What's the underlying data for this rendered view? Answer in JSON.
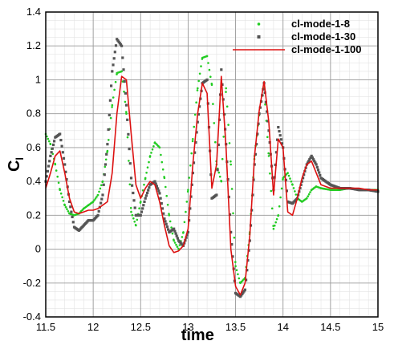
{
  "chart_data": {
    "type": "line",
    "xlabel": "time",
    "ylabel_main": "C",
    "ylabel_sub": "l",
    "xlim": [
      11.5,
      15
    ],
    "ylim": [
      -0.4,
      1.4
    ],
    "x_ticks": [
      "11.5",
      "12",
      "12.5",
      "13",
      "13.5",
      "14",
      "14.5",
      "15"
    ],
    "y_ticks": [
      "-0.4",
      "-0.2",
      "0",
      "0.2",
      "0.4",
      "0.6",
      "0.8",
      "1",
      "1.2",
      "1.4"
    ],
    "x_tick_values": [
      11.5,
      12,
      12.5,
      13,
      13.5,
      14,
      14.5,
      15
    ],
    "y_tick_values": [
      -0.4,
      -0.2,
      0,
      0.2,
      0.4,
      0.6,
      0.8,
      1.0,
      1.2,
      1.4
    ],
    "grid": true,
    "legend_position": "top-right",
    "series": [
      {
        "name": "cl-mode-1-8",
        "color": "#22cc22",
        "style": "dots",
        "x": [
          11.5,
          11.55,
          11.6,
          11.65,
          11.7,
          11.75,
          11.8,
          11.85,
          11.9,
          11.95,
          12.0,
          12.05,
          12.1,
          12.15,
          12.2,
          12.25,
          12.3,
          12.35,
          12.4,
          12.45,
          12.5,
          12.55,
          12.6,
          12.65,
          12.7,
          12.75,
          12.8,
          12.85,
          12.9,
          12.95,
          13.0,
          13.05,
          13.1,
          13.15,
          13.2,
          13.25,
          13.3,
          13.35,
          13.4,
          13.45,
          13.5,
          13.55,
          13.6,
          13.65,
          13.7,
          13.75,
          13.8,
          13.85,
          13.9,
          13.95,
          14.0,
          14.05,
          14.1,
          14.15,
          14.2,
          14.25,
          14.3,
          14.35,
          14.4,
          14.5,
          14.6,
          14.7,
          14.8,
          14.9,
          15.0
        ],
        "y": [
          0.68,
          0.62,
          0.5,
          0.35,
          0.26,
          0.21,
          0.2,
          0.21,
          0.24,
          0.26,
          0.28,
          0.32,
          0.4,
          0.58,
          0.85,
          1.04,
          1.05,
          0.8,
          0.22,
          0.14,
          0.28,
          0.42,
          0.55,
          0.63,
          0.6,
          0.42,
          0.2,
          0.05,
          0.0,
          0.1,
          0.35,
          0.65,
          0.95,
          1.13,
          1.14,
          0.97,
          0.5,
          0.4,
          0.95,
          0.5,
          -0.1,
          -0.2,
          -0.17,
          0.1,
          0.55,
          0.8,
          0.95,
          0.55,
          0.12,
          0.2,
          0.42,
          0.45,
          0.38,
          0.3,
          0.28,
          0.3,
          0.35,
          0.37,
          0.36,
          0.35,
          0.35,
          0.36,
          0.35,
          0.35,
          0.35
        ]
      },
      {
        "name": "cl-mode-1-30",
        "color": "#555555",
        "style": "squares",
        "x": [
          11.5,
          11.55,
          11.6,
          11.65,
          11.7,
          11.75,
          11.8,
          11.85,
          11.9,
          11.95,
          12.0,
          12.05,
          12.1,
          12.15,
          12.2,
          12.25,
          12.3,
          12.35,
          12.4,
          12.45,
          12.5,
          12.55,
          12.6,
          12.65,
          12.7,
          12.75,
          12.8,
          12.85,
          12.9,
          12.95,
          13.0,
          13.05,
          13.1,
          13.15,
          13.2,
          13.25,
          13.3,
          13.35,
          13.4,
          13.45,
          13.5,
          13.55,
          13.6,
          13.65,
          13.7,
          13.75,
          13.8,
          13.85,
          13.9,
          13.95,
          14.0,
          14.05,
          14.1,
          14.15,
          14.2,
          14.25,
          14.3,
          14.35,
          14.4,
          14.5,
          14.6,
          14.7,
          14.8,
          14.9,
          15.0
        ],
        "y": [
          0.4,
          0.55,
          0.66,
          0.68,
          0.5,
          0.28,
          0.13,
          0.11,
          0.14,
          0.17,
          0.17,
          0.2,
          0.32,
          0.62,
          1.05,
          1.24,
          1.2,
          0.85,
          0.42,
          0.2,
          0.2,
          0.3,
          0.38,
          0.4,
          0.33,
          0.18,
          0.1,
          0.12,
          0.05,
          0.02,
          0.1,
          0.45,
          0.75,
          0.98,
          1.0,
          0.3,
          0.32,
          1.06,
          0.62,
          0.1,
          -0.26,
          -0.28,
          -0.24,
          0.05,
          0.5,
          0.8,
          0.98,
          0.7,
          0.35,
          0.72,
          0.6,
          0.28,
          0.27,
          0.3,
          0.4,
          0.5,
          0.55,
          0.5,
          0.42,
          0.38,
          0.36,
          0.36,
          0.35,
          0.35,
          0.34
        ]
      },
      {
        "name": "cl-mode-1-100",
        "color": "#dd1111",
        "style": "line",
        "x": [
          11.5,
          11.55,
          11.6,
          11.65,
          11.7,
          11.75,
          11.8,
          11.85,
          11.9,
          11.95,
          12.0,
          12.05,
          12.1,
          12.15,
          12.2,
          12.25,
          12.3,
          12.35,
          12.4,
          12.45,
          12.5,
          12.55,
          12.6,
          12.65,
          12.7,
          12.75,
          12.8,
          12.85,
          12.9,
          12.95,
          13.0,
          13.05,
          13.1,
          13.15,
          13.2,
          13.25,
          13.3,
          13.35,
          13.4,
          13.45,
          13.5,
          13.55,
          13.6,
          13.65,
          13.7,
          13.75,
          13.8,
          13.85,
          13.9,
          13.95,
          14.0,
          14.05,
          14.1,
          14.15,
          14.2,
          14.25,
          14.3,
          14.35,
          14.4,
          14.5,
          14.6,
          14.7,
          14.8,
          14.9,
          15.0
        ],
        "y": [
          0.36,
          0.45,
          0.55,
          0.58,
          0.45,
          0.3,
          0.22,
          0.21,
          0.22,
          0.23,
          0.23,
          0.24,
          0.26,
          0.28,
          0.45,
          0.8,
          1.02,
          1.0,
          0.68,
          0.38,
          0.3,
          0.36,
          0.4,
          0.38,
          0.28,
          0.14,
          0.02,
          -0.02,
          -0.01,
          0.02,
          0.12,
          0.5,
          0.8,
          0.98,
          0.92,
          0.36,
          0.5,
          1.02,
          0.6,
          0.0,
          -0.22,
          -0.27,
          -0.2,
          0.08,
          0.55,
          0.82,
          0.99,
          0.75,
          0.32,
          0.65,
          0.6,
          0.22,
          0.2,
          0.3,
          0.42,
          0.5,
          0.52,
          0.45,
          0.38,
          0.36,
          0.36,
          0.36,
          0.36,
          0.35,
          0.35
        ]
      }
    ]
  }
}
